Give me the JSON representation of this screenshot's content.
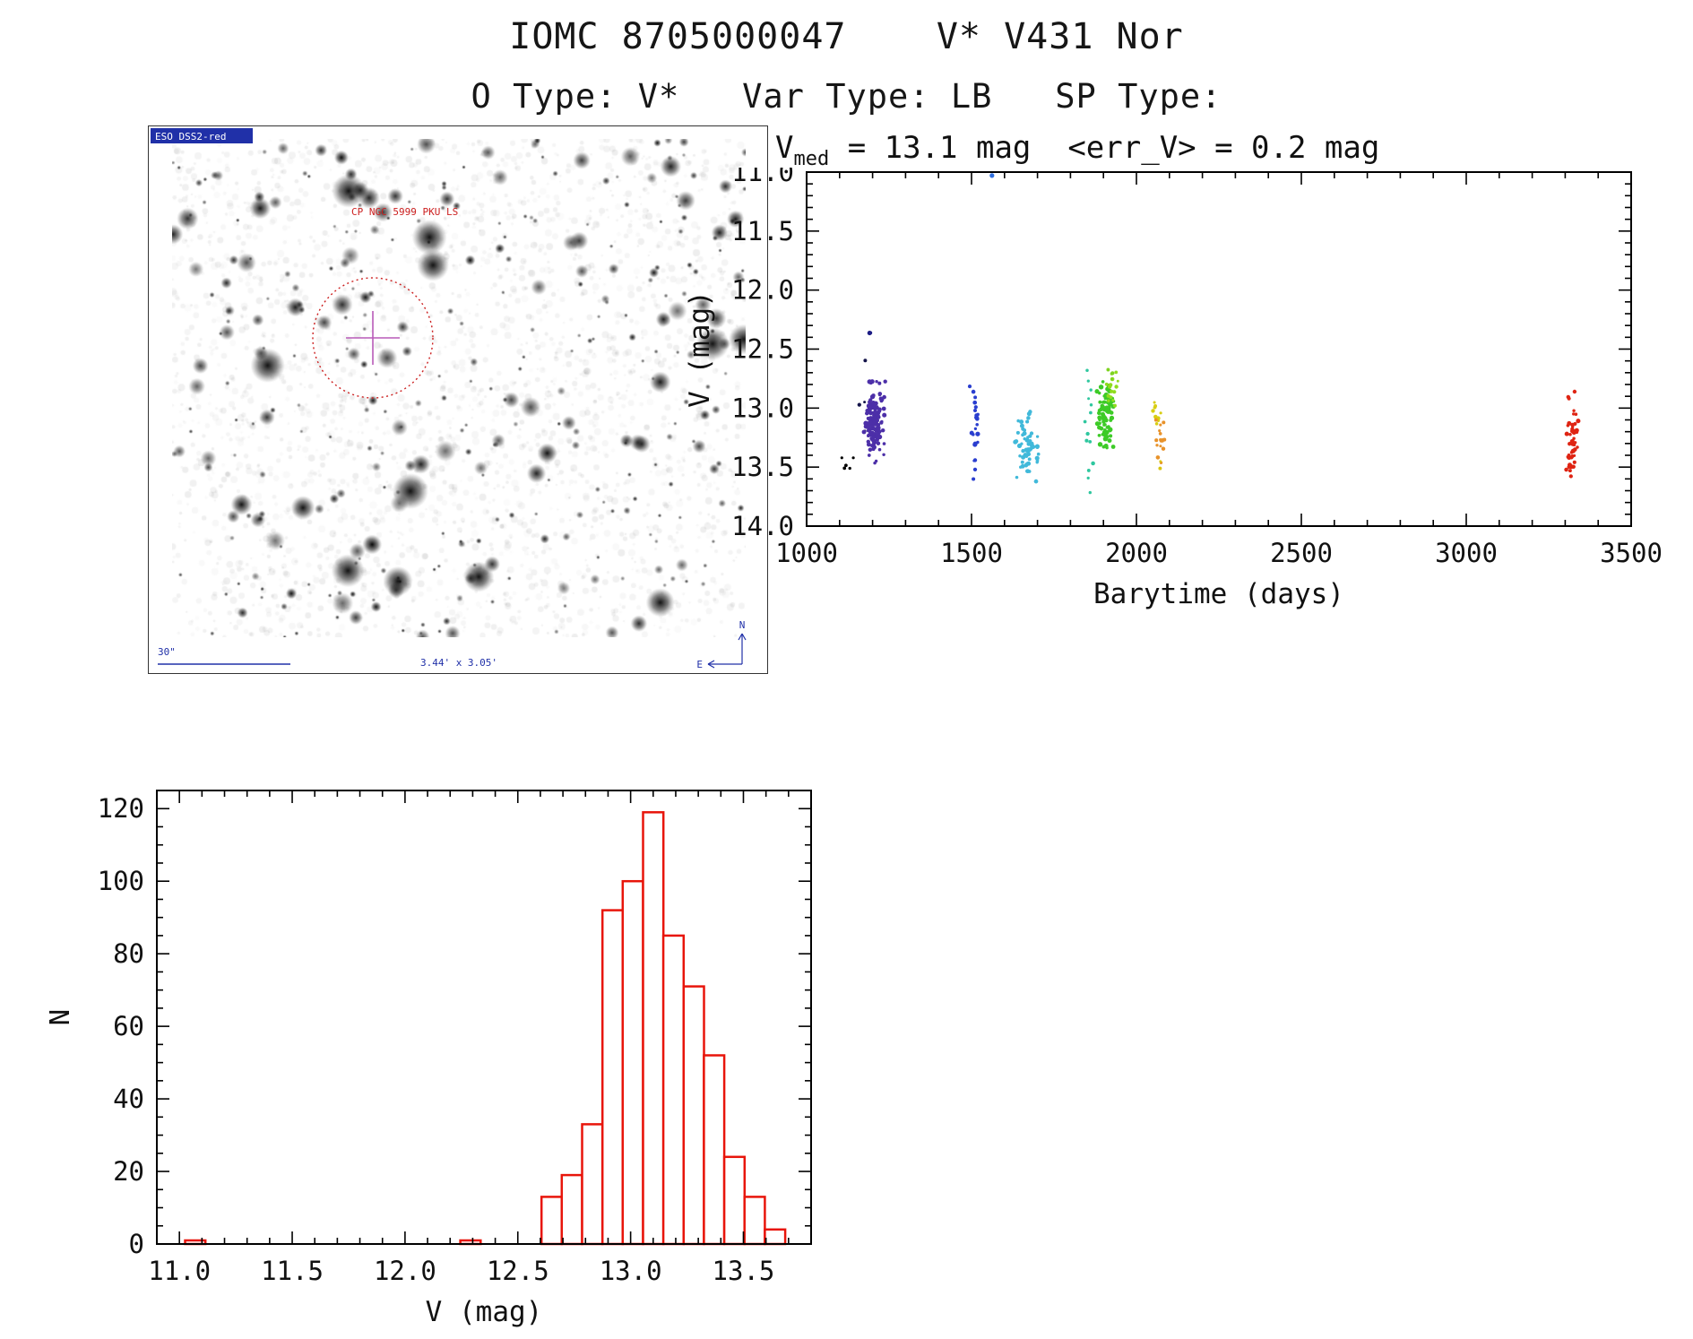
{
  "page": {
    "title": "IOMC 8705000047    V* V431 Nor",
    "subtitle": "O Type: V*   Var Type: LB   SP Type:"
  },
  "finding_chart": {
    "survey_label": "ESO DSS2-red",
    "overlay_label": "CP NGC 5999 PKU LS",
    "scale_bar_label": "30\"",
    "fov_label": "3.44' x 3.05'",
    "compass_north": "N",
    "compass_east": "E",
    "circle_color": "#cc2020",
    "cross_color": "#b85ab8"
  },
  "chart_data": [
    {
      "type": "scatter",
      "title_v": "V",
      "title_sub": "med",
      "title_rest": " = 13.1 mag  <err_V> = 0.2 mag",
      "v_med_mag": 13.1,
      "err_v_mag": 0.2,
      "xlabel": "Barytime (days)",
      "ylabel": "V (mag)",
      "xlim": [
        1000,
        3500
      ],
      "ylim": [
        11.0,
        14.0
      ],
      "y_axis_reversed": true,
      "xticks": [
        1000,
        1500,
        2000,
        2500,
        3000,
        3500
      ],
      "yticks": [
        11.0,
        11.5,
        12.0,
        12.5,
        13.0,
        13.5,
        14.0
      ],
      "clusters": [
        {
          "t": 1122,
          "t_spread": 16,
          "v": 13.44,
          "v_spread": 0.07,
          "n": 5,
          "color": "#000000",
          "size": 1.9
        },
        {
          "t": 1168,
          "t_spread": 8,
          "v": 13.1,
          "v_spread": 0.22,
          "n": 4,
          "color": "#14144a",
          "size": 1.9
        },
        {
          "t": 1196,
          "t_spread": 4,
          "v": 12.37,
          "v_spread": 0.02,
          "n": 2,
          "color": "#1d1d85",
          "size": 2.1
        },
        {
          "t": 1206,
          "t_spread": 14,
          "v": 13.12,
          "v_spread": 0.15,
          "n": 135,
          "color": "#4c2fa8",
          "size": 2.2
        },
        {
          "t": 1510,
          "t_spread": 7,
          "v": 13.05,
          "v_spread": 0.13,
          "n": 18,
          "color": "#2a3ecf",
          "size": 2.1
        },
        {
          "t": 1512,
          "t_spread": 5,
          "v": 13.5,
          "v_spread": 0.07,
          "n": 4,
          "color": "#2a3ecf",
          "size": 1.9
        },
        {
          "t": 1668,
          "t_spread": 20,
          "v": 13.33,
          "v_spread": 0.13,
          "n": 60,
          "color": "#41b9da",
          "size": 2.1
        },
        {
          "t": 1860,
          "t_spread": 7,
          "v": 13.2,
          "v_spread": 0.26,
          "n": 14,
          "color": "#2fc79f",
          "size": 1.9
        },
        {
          "t": 1906,
          "t_spread": 12,
          "v": 13.02,
          "v_spread": 0.14,
          "n": 85,
          "color": "#3dcb27",
          "size": 2.2
        },
        {
          "t": 1928,
          "t_spread": 8,
          "v": 12.82,
          "v_spread": 0.1,
          "n": 16,
          "color": "#8fdc1e",
          "size": 1.9
        },
        {
          "t": 1925,
          "t_spread": 5,
          "v": 12.69,
          "v_spread": 0.04,
          "n": 4,
          "color": "#7ed321",
          "size": 1.9
        },
        {
          "t": 2060,
          "t_spread": 7,
          "v": 13.03,
          "v_spread": 0.06,
          "n": 10,
          "color": "#d8ce12",
          "size": 1.9
        },
        {
          "t": 2074,
          "t_spread": 8,
          "v": 13.3,
          "v_spread": 0.11,
          "n": 16,
          "color": "#e8922a",
          "size": 1.9
        },
        {
          "t": 2078,
          "t_spread": 4,
          "v": 13.5,
          "v_spread": 0.03,
          "n": 2,
          "color": "#d8c512",
          "size": 1.9
        },
        {
          "t": 3320,
          "t_spread": 9,
          "v": 13.28,
          "v_spread": 0.18,
          "n": 42,
          "color": "#df2413",
          "size": 2.1
        },
        {
          "t": 3317,
          "t_spread": 5,
          "v": 12.88,
          "v_spread": 0.04,
          "n": 3,
          "color": "#df2413",
          "size": 1.9
        }
      ],
      "outliers": [
        {
          "t": 1562,
          "v": 11.03,
          "color": "#2f6fdf"
        }
      ]
    },
    {
      "type": "bar",
      "title": "",
      "xlabel": "V (mag)",
      "ylabel": "N",
      "xlim": [
        10.9,
        13.8
      ],
      "ylim": [
        0,
        125
      ],
      "xticks": [
        11.0,
        11.5,
        12.0,
        12.5,
        13.0,
        13.5
      ],
      "yticks": [
        0,
        20,
        40,
        60,
        80,
        100,
        120
      ],
      "bin_width": 0.09,
      "bin_centers": [
        11.07,
        12.29,
        12.65,
        12.74,
        12.83,
        12.92,
        13.01,
        13.1,
        13.19,
        13.28,
        13.37,
        13.46,
        13.55,
        13.64
      ],
      "counts": [
        1,
        1,
        13,
        19,
        33,
        92,
        100,
        119,
        85,
        71,
        52,
        24,
        13,
        4
      ],
      "bar_color": "#e8150b"
    }
  ]
}
